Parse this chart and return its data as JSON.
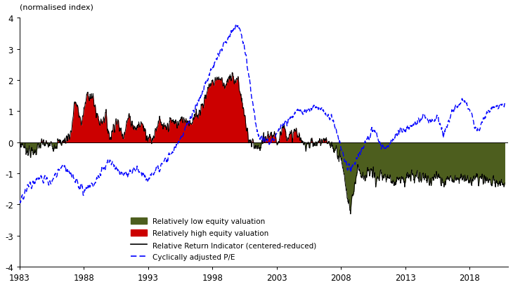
{
  "title": "",
  "ylabel": "(normalised index)",
  "ylim": [
    -4,
    4
  ],
  "yticks": [
    -4,
    -3,
    -2,
    -1,
    0,
    1,
    2,
    3,
    4
  ],
  "xlim": [
    1983,
    2021
  ],
  "xticks": [
    1983,
    1988,
    1993,
    1998,
    2003,
    2008,
    2013,
    2018
  ],
  "rri_color": "#000000",
  "cape_color": "#0000FF",
  "low_color": "#4d5e1e",
  "high_color": "#CC0000",
  "background_color": "#ffffff",
  "legend_labels": [
    "Relatively low equity valuation",
    "Relatively high equity valuation",
    "Relative Return Indicator (centered-reduced)",
    "Cyclically adjusted P/E"
  ]
}
